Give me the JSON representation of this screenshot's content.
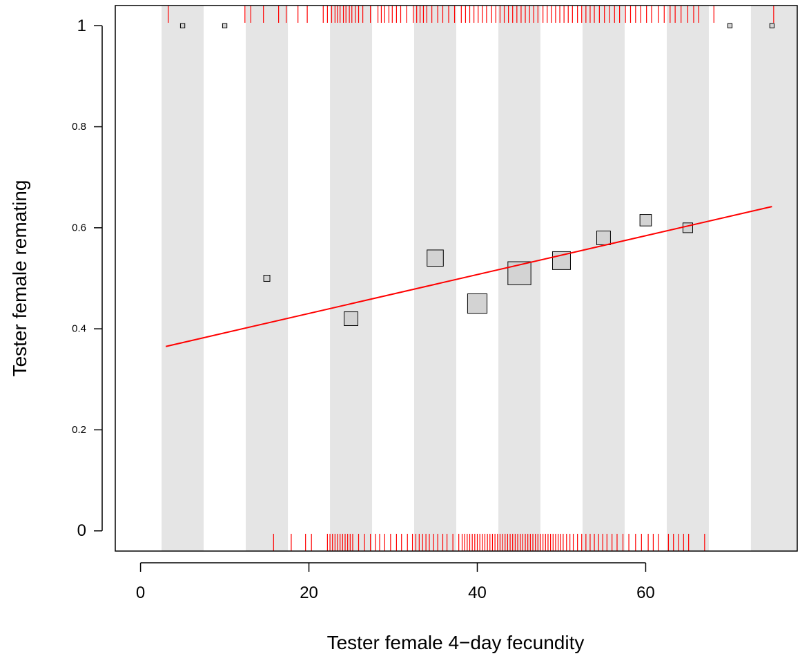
{
  "chart_data": {
    "type": "scatter",
    "title": "",
    "xlabel": "Tester female 4−day fecundity",
    "ylabel": "Tester female remating",
    "xlim": [
      -3,
      78
    ],
    "ylim": [
      -0.04,
      1.04
    ],
    "x_ticks": [
      {
        "value": 0,
        "label": "0"
      },
      {
        "value": 20,
        "label": "20"
      },
      {
        "value": 40,
        "label": "40"
      },
      {
        "value": 60,
        "label": "60"
      }
    ],
    "y_ticks": [
      {
        "value": 0,
        "label": "0",
        "major": true
      },
      {
        "value": 0.2,
        "label": "0.2",
        "major": false
      },
      {
        "value": 0.4,
        "label": "0.4",
        "major": false
      },
      {
        "value": 0.6,
        "label": "0.6",
        "major": false
      },
      {
        "value": 0.8,
        "label": "0.8",
        "major": false
      },
      {
        "value": 1,
        "label": "1",
        "major": true
      }
    ],
    "bands": [
      {
        "from": 2.5,
        "to": 7.5
      },
      {
        "from": 12.5,
        "to": 17.5
      },
      {
        "from": 22.5,
        "to": 27.5
      },
      {
        "from": 32.5,
        "to": 37.5
      },
      {
        "from": 42.5,
        "to": 47.5
      },
      {
        "from": 52.5,
        "to": 57.5
      },
      {
        "from": 62.5,
        "to": 67.5
      },
      {
        "from": 72.5,
        "to": 78
      }
    ],
    "binned_means": [
      {
        "x": 5,
        "y": 1.0,
        "weight": 1
      },
      {
        "x": 10,
        "y": 1.0,
        "weight": 1
      },
      {
        "x": 15,
        "y": 0.5,
        "weight": 2
      },
      {
        "x": 25,
        "y": 0.42,
        "weight": 10
      },
      {
        "x": 35,
        "y": 0.54,
        "weight": 14
      },
      {
        "x": 40,
        "y": 0.45,
        "weight": 20
      },
      {
        "x": 45,
        "y": 0.51,
        "weight": 28
      },
      {
        "x": 50,
        "y": 0.535,
        "weight": 17
      },
      {
        "x": 55,
        "y": 0.58,
        "weight": 10
      },
      {
        "x": 60,
        "y": 0.615,
        "weight": 7
      },
      {
        "x": 65,
        "y": 0.6,
        "weight": 5
      },
      {
        "x": 70,
        "y": 1.0,
        "weight": 1
      },
      {
        "x": 75,
        "y": 1.0,
        "weight": 1
      }
    ],
    "fit_line": {
      "x": [
        3,
        75
      ],
      "y": [
        0.365,
        0.642
      ]
    },
    "rug_top": [
      3.3,
      12.4,
      13.1,
      14.6,
      16.4,
      17.3,
      18.7,
      19.8,
      21.7,
      22.2,
      22.7,
      23.1,
      23.4,
      23.7,
      24.1,
      24.4,
      24.8,
      25.1,
      25.5,
      25.9,
      26.4,
      27.3,
      28.2,
      28.6,
      29.0,
      29.5,
      29.9,
      30.4,
      30.9,
      31.6,
      32.4,
      32.8,
      33.2,
      33.6,
      34.0,
      34.6,
      35.3,
      35.9,
      36.6,
      37.3,
      38.1,
      38.6,
      39.1,
      39.6,
      40.1,
      40.6,
      41.1,
      41.7,
      42.2,
      42.7,
      43.2,
      43.7,
      44.2,
      44.7,
      45.2,
      45.7,
      46.2,
      46.7,
      47.2,
      47.8,
      48.3,
      48.8,
      49.3,
      49.8,
      50.3,
      50.8,
      51.3,
      51.9,
      52.4,
      52.9,
      53.4,
      53.9,
      54.5,
      55.1,
      55.7,
      56.3,
      56.9,
      57.6,
      58.2,
      58.8,
      59.4,
      60.1,
      60.7,
      61.5,
      62.2,
      62.9,
      63.5,
      64.2,
      65.0,
      65.7,
      66.3,
      68.1,
      75.2
    ],
    "rug_bottom": [
      15.8,
      17.9,
      19.6,
      20.3,
      22.2,
      22.5,
      22.8,
      23.1,
      23.4,
      23.7,
      24.0,
      24.3,
      24.6,
      24.9,
      25.2,
      25.9,
      26.6,
      27.3,
      27.9,
      28.4,
      29.0,
      29.7,
      30.4,
      31.0,
      31.7,
      32.3,
      32.7,
      33.1,
      33.5,
      33.9,
      34.3,
      34.8,
      35.3,
      35.9,
      36.4,
      37.1,
      37.8,
      38.2,
      38.5,
      38.8,
      39.1,
      39.4,
      39.7,
      40.0,
      40.3,
      40.6,
      40.9,
      41.2,
      41.5,
      41.8,
      42.1,
      42.4,
      42.7,
      43.0,
      43.3,
      43.6,
      43.9,
      44.2,
      44.5,
      44.8,
      45.1,
      45.4,
      45.7,
      46.0,
      46.3,
      46.6,
      46.9,
      47.2,
      47.5,
      47.8,
      48.1,
      48.4,
      48.7,
      49.0,
      49.3,
      49.6,
      49.9,
      50.2,
      50.6,
      51.0,
      51.4,
      51.9,
      52.4,
      52.9,
      53.4,
      53.9,
      54.4,
      54.9,
      55.4,
      56.0,
      56.6,
      57.3,
      58.0,
      58.8,
      59.5,
      60.3,
      60.9,
      61.5,
      62.7,
      63.3,
      63.9,
      64.5,
      65.1,
      67.0
    ]
  }
}
